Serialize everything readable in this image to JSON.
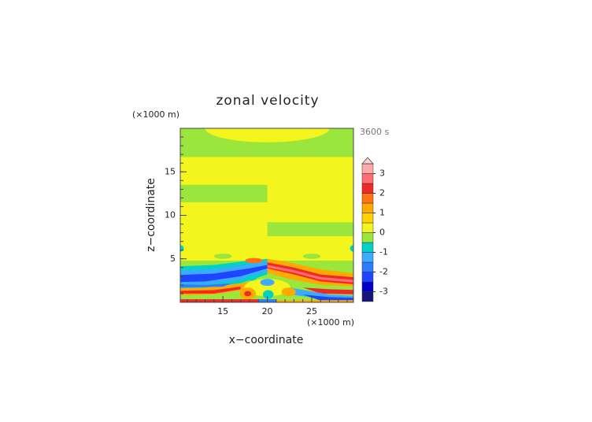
{
  "chart_data": {
    "type": "contourf",
    "title": "zonal velocity",
    "subtitle": "3600 s",
    "xlabel": "x−coordinate",
    "ylabel": "z−coordinate",
    "xunit": "(×1000 m)",
    "yunit": "(×1000 m)",
    "xlim": [
      10.2,
      29.7
    ],
    "xticks": [
      15,
      20,
      25
    ],
    "ylim": [
      0,
      20
    ],
    "yticks": [
      5,
      10,
      15
    ],
    "levels": [
      -3.5,
      -3,
      -2.5,
      -2,
      -1.5,
      -1,
      -0.5,
      0,
      0.5,
      1,
      1.5,
      2,
      2.5,
      3,
      3.5
    ],
    "colors": [
      "#14147a",
      "#0000c8",
      "#1e46ff",
      "#2c7cff",
      "#3caaff",
      "#00d2c8",
      "#9be63c",
      "#f5f51e",
      "#ffd200",
      "#ffaa00",
      "#ff7314",
      "#f02828",
      "#ff6e6e",
      "#ffaaaa"
    ],
    "extend_color": "#ffd0d0",
    "cbticks": [
      -3,
      -2,
      -1,
      0,
      1,
      2,
      3
    ]
  }
}
